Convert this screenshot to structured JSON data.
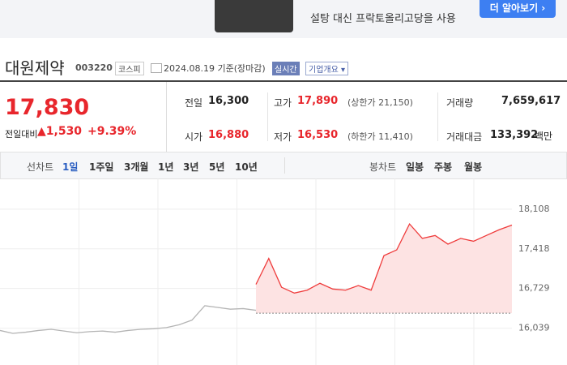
{
  "ad": {
    "headline": "설탕 대신 프락토올리고당을 사용",
    "button": "더 알아보기"
  },
  "header": {
    "name": "대원제약",
    "code": "003220",
    "market": "코스피",
    "date": "2024.08.19",
    "basis": "기준(장마감)",
    "realtime": "실시간",
    "company": "기업개요"
  },
  "quote": {
    "price": "17,830",
    "change_label": "전일대비",
    "change": "▲1,530",
    "rate": "+9.39%"
  },
  "stats": [
    {
      "label": "전일",
      "value": "16,300"
    },
    {
      "label": "고가",
      "value": "17,890",
      "note": "(상한가 21,150)"
    },
    {
      "label": "거래량",
      "value": "7,659,617"
    },
    {
      "label": "시가",
      "value": "16,880"
    },
    {
      "label": "저가",
      "value": "16,530",
      "note": "(하한가 11,410)"
    },
    {
      "label": "거래대금",
      "value": "133,392",
      "unit": "백만"
    }
  ],
  "tabs": {
    "line_label": "선차트",
    "line": [
      "1일",
      "1주일",
      "3개월",
      "1년",
      "3년",
      "5년",
      "10년"
    ],
    "candle_label": "봉차트",
    "candle": [
      "일봉",
      "주봉",
      "월봉"
    ]
  },
  "chart": {
    "type": "line",
    "ylim": [
      15400,
      18500
    ],
    "yticks": [
      {
        "value": 18108,
        "label": "18,108"
      },
      {
        "value": 17418,
        "label": "17,418"
      },
      {
        "value": 16729,
        "label": "16,729"
      },
      {
        "value": 16039,
        "label": "16,039"
      }
    ],
    "baseline": 16300,
    "series": [
      {
        "color": "#b4b4b4",
        "values": [
          16000,
          15950,
          15970,
          16000,
          16020,
          15990,
          15960,
          15980,
          15990,
          15970,
          16000,
          16020,
          16030,
          16050,
          16100,
          16180,
          16430,
          16400,
          16370,
          16380,
          16350,
          null,
          null,
          null,
          null,
          null,
          null,
          null,
          null,
          null,
          null,
          null,
          null,
          null,
          null,
          null,
          null,
          null,
          null,
          null,
          null
        ]
      },
      {
        "color": "#ef3b3b",
        "values": [
          null,
          null,
          null,
          null,
          null,
          null,
          null,
          null,
          null,
          null,
          null,
          null,
          null,
          null,
          null,
          null,
          null,
          null,
          null,
          null,
          16800,
          17250,
          16750,
          16650,
          16700,
          16820,
          16720,
          16700,
          16780,
          16700,
          17300,
          17400,
          17850,
          17600,
          17650,
          17500,
          17600,
          17550,
          17650,
          17750,
          17830
        ]
      }
    ]
  }
}
